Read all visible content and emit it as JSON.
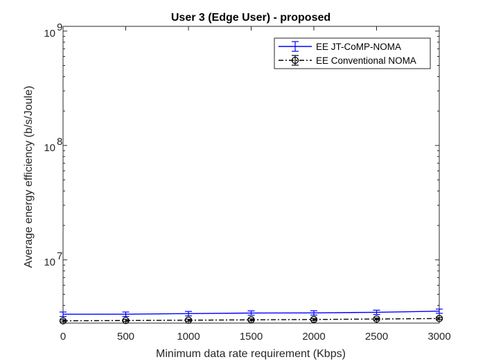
{
  "chart_data": {
    "type": "line",
    "title": "User 3 (Edge User) - proposed",
    "xlabel": "Minimum data rate requirement (Kbps)",
    "ylabel": "Average energy efficiency (b/s/Joule)",
    "xlim": [
      0,
      3000
    ],
    "ylim": [
      2800000,
      1100000000
    ],
    "yscale": "log",
    "x": [
      0,
      500,
      1000,
      1500,
      2000,
      2500,
      3000
    ],
    "x_tick_labels": [
      "0",
      "500",
      "1000",
      "1500",
      "2000",
      "2500",
      "3000"
    ],
    "y_ticks": [
      10000000,
      100000000,
      1000000000
    ],
    "y_tick_labels": [
      {
        "base": "10",
        "exp": "7"
      },
      {
        "base": "10",
        "exp": "8"
      },
      {
        "base": "10",
        "exp": "9"
      }
    ],
    "series": [
      {
        "name": "EE JT-CoMP-NOMA",
        "color": "#0000FF",
        "line_style": "solid",
        "marker": "errorbar",
        "values": [
          3350000,
          3350000,
          3390000,
          3430000,
          3440000,
          3480000,
          3560000
        ],
        "err": [
          150000,
          150000,
          150000,
          150000,
          150000,
          150000,
          150000
        ]
      },
      {
        "name": "EE Conventional NOMA",
        "color": "#000000",
        "line_style": "dashdot",
        "marker": "circle",
        "values": [
          2930000,
          2950000,
          2970000,
          2990000,
          3010000,
          3040000,
          3070000
        ],
        "err": [
          60000,
          60000,
          60000,
          60000,
          60000,
          60000,
          60000
        ]
      }
    ],
    "grid": false,
    "legend_position": "top-right"
  }
}
